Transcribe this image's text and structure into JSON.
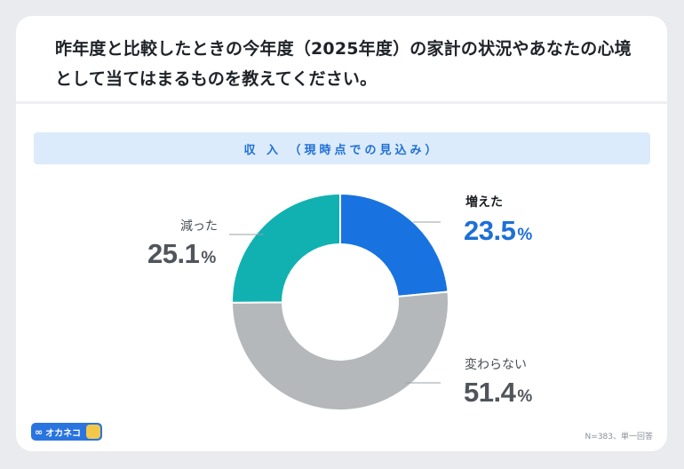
{
  "question": "昨年度と比較したときの今年度（2025年度）の家計の状況やあなたの心境として当てはまるものを教えてください。",
  "section_title": "収 入 （現時点での見込み）",
  "labels": {
    "increased_name": "増えた",
    "increased_value": "23.5",
    "decreased_name": "減った",
    "decreased_value": "25.1",
    "unchanged_name": "変わらない",
    "unchanged_value": "51.4",
    "unit": "%"
  },
  "logo": {
    "mark": "∞",
    "text": "オカネコ"
  },
  "note": "N=383、単一回答",
  "colors": {
    "increased": "#1873e0",
    "unchanged": "#b5b8bb",
    "decreased": "#11b1b1",
    "accent": "#1d6fd6"
  },
  "chart_data": {
    "type": "pie",
    "title": "収 入 （現時点での見込み）",
    "categories": [
      "増えた",
      "変わらない",
      "減った"
    ],
    "values": [
      23.5,
      51.4,
      25.1
    ],
    "unit": "%",
    "donut": true
  }
}
